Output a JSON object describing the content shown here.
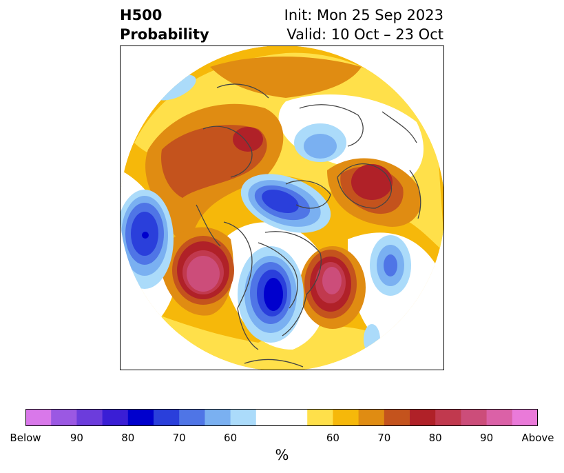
{
  "title": {
    "left_line1": "H500",
    "left_line2": "Probability",
    "right_line1": "Init: Mon 25 Sep 2023",
    "right_line2": "Valid: 10 Oct – 23 Oct"
  },
  "colorbar": {
    "colors": [
      "#d978ea",
      "#9b58e3",
      "#6c3cdc",
      "#3a1ed5",
      "#0000cd",
      "#2a3fdb",
      "#4f75e6",
      "#7ab0f1",
      "#abdbfa",
      "#ffffff",
      "#ffffff",
      "#ffe04a",
      "#f6b80a",
      "#e08c12",
      "#c4531d",
      "#b02128",
      "#c1394e",
      "#cc4d7a",
      "#db61a7",
      "#ea7ad9"
    ],
    "tick_labels": [
      "Below",
      "90",
      "80",
      "70",
      "60",
      "60",
      "70",
      "80",
      "90",
      "Above"
    ],
    "unit": "%"
  },
  "legend_colors": {
    "below_strong": "#0000cd",
    "below_mid": "#4f75e6",
    "below_weak": "#abdbfa",
    "above_weak": "#ffe04a",
    "above_mid": "#e08c12",
    "above_strong": "#b02128",
    "above_max": "#cc4d7a"
  }
}
